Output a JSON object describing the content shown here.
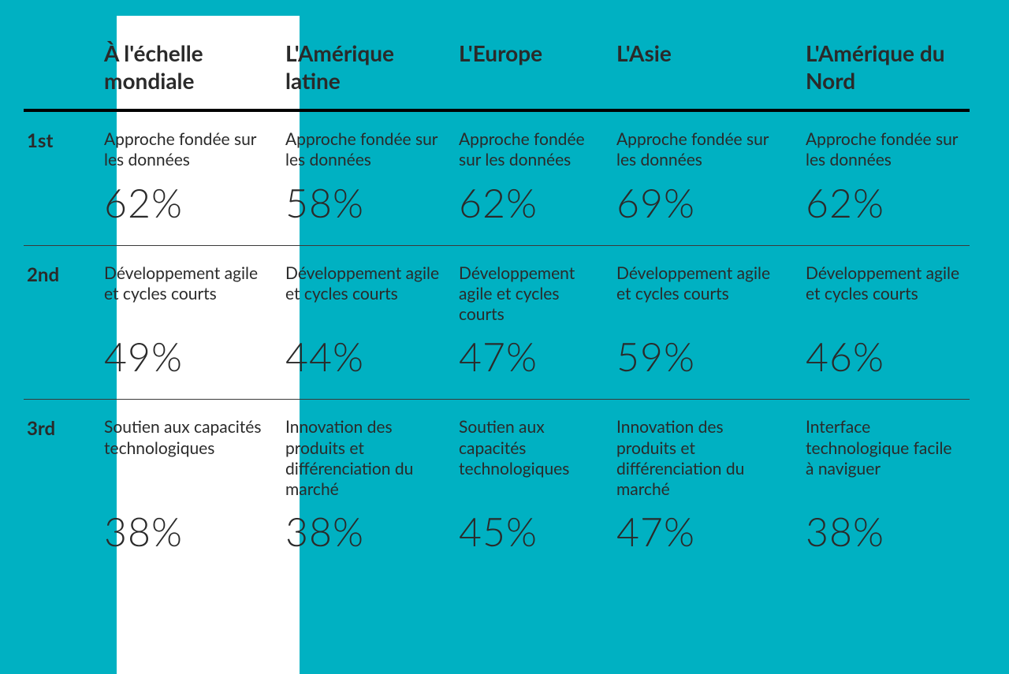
{
  "table": {
    "type": "table",
    "background_color": "#00b1c2",
    "highlight_column_bg": "#ffffff",
    "text_color": "#2a2a2a",
    "header_border_color": "#000000",
    "row_border_color": "#3a3a3a",
    "header_fontsize": 28,
    "label_fontsize": 21,
    "value_fontsize": 50,
    "rank_fontsize": 24,
    "columns": [
      {
        "key": "rank",
        "label": ""
      },
      {
        "key": "global",
        "label": "À l'échelle mondiale",
        "highlight": true
      },
      {
        "key": "latam",
        "label": "L'Amérique latine"
      },
      {
        "key": "europe",
        "label": "L'Europe"
      },
      {
        "key": "asia",
        "label": "L'Asie"
      },
      {
        "key": "na",
        "label": "L'Amérique du Nord"
      }
    ],
    "rows": [
      {
        "rank": "1st",
        "cells": {
          "global": {
            "label": "Approche fondée sur les données",
            "value": "62%"
          },
          "latam": {
            "label": "Approche fondée sur les données",
            "value": "58%"
          },
          "europe": {
            "label": "Approche fondée sur les données",
            "value": "62%"
          },
          "asia": {
            "label": "Approche fondée sur les données",
            "value": "69%"
          },
          "na": {
            "label": "Approche fondée sur les données",
            "value": "62%"
          }
        }
      },
      {
        "rank": "2nd",
        "cells": {
          "global": {
            "label": "Développement agile et cycles courts",
            "value": "49%"
          },
          "latam": {
            "label": "Développement agile et cycles courts",
            "value": "44%"
          },
          "europe": {
            "label": "Développement agile et cycles courts",
            "value": "47%"
          },
          "asia": {
            "label": "Développement agile et cycles courts",
            "value": "59%"
          },
          "na": {
            "label": "Développement agile et cycles courts",
            "value": "46%"
          }
        }
      },
      {
        "rank": "3rd",
        "cells": {
          "global": {
            "label": "Soutien aux capacités technologiques",
            "value": "38%"
          },
          "latam": {
            "label": "Innovation des produits et différenciation du marché",
            "value": "38%"
          },
          "europe": {
            "label": "Soutien aux capacités technologiques",
            "value": "45%"
          },
          "asia": {
            "label": "Innovation des produits et différenciation du marché",
            "value": "47%"
          },
          "na": {
            "label": "Interface technologique facile à naviguer",
            "value": "38%"
          }
        }
      }
    ]
  }
}
